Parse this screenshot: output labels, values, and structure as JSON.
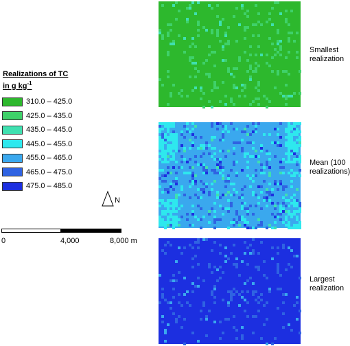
{
  "legend": {
    "title_line1": "Realizations of TC",
    "title_line2_base": "in g kg",
    "title_line2_exp": "-1",
    "items": [
      {
        "label": "310.0  – 425.0",
        "color": "#2db82d"
      },
      {
        "label": "425.0 – 435.0",
        "color": "#3fd16a"
      },
      {
        "label": "435.0 – 445.0",
        "color": "#3fe0b0"
      },
      {
        "label": "445.0 – 455.0",
        "color": "#2ee8ee"
      },
      {
        "label": "455.0 – 465.0",
        "color": "#3aa8ee"
      },
      {
        "label": "465.0 – 475.0",
        "color": "#2f63e2"
      },
      {
        "label": "475.0 – 485.0",
        "color": "#1c2fe0"
      }
    ]
  },
  "north": {
    "label": "N",
    "icon": "north-arrow-icon"
  },
  "scale_bar": {
    "labels": [
      "0",
      "4,000",
      "8,000 m"
    ]
  },
  "panels": [
    {
      "id": "smallest",
      "label": "Smallest\nrealization",
      "dominant_class": 0
    },
    {
      "id": "mean",
      "label": "Mean (100\nrealizations)",
      "dominant_class": 4
    },
    {
      "id": "largest",
      "label": "Largest\nrealization",
      "dominant_class": 6
    }
  ]
}
